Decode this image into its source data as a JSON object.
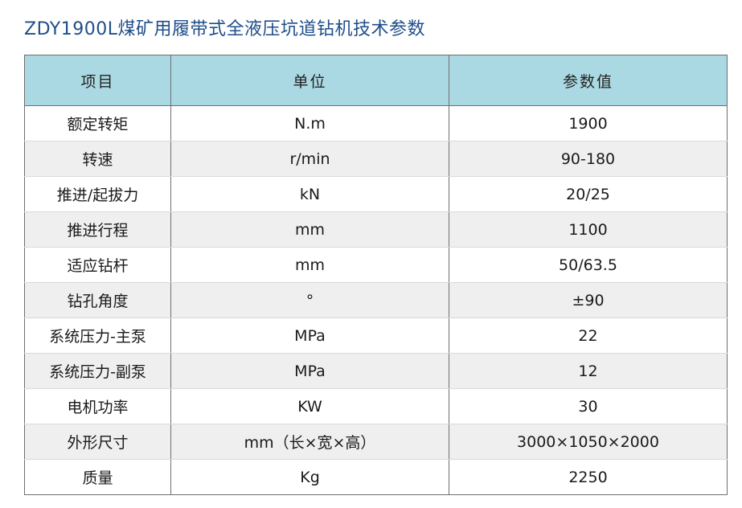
{
  "title": "ZDY1900L煤矿用履带式全液压坑道钻机技术参数",
  "table": {
    "headers": [
      "项目",
      "单位",
      "参数值"
    ],
    "rows": [
      {
        "item": "额定转矩",
        "unit": "N.m",
        "value": "1900"
      },
      {
        "item": "转速",
        "unit": "r/min",
        "value": "90-180"
      },
      {
        "item": "推进/起拔力",
        "unit": "kN",
        "value": "20/25"
      },
      {
        "item": "推进行程",
        "unit": "mm",
        "value": "1100"
      },
      {
        "item": "适应钻杆",
        "unit": "mm",
        "value": "50/63.5"
      },
      {
        "item": "钻孔角度",
        "unit": "°",
        "value": "±90"
      },
      {
        "item": "系统压力-主泵",
        "unit": "MPa",
        "value": "22"
      },
      {
        "item": "系统压力-副泵",
        "unit": "MPa",
        "value": "12"
      },
      {
        "item": "电机功率",
        "unit": "KW",
        "value": "30"
      },
      {
        "item": "外形尺寸",
        "unit": "mm（长×宽×高）",
        "value": "3000×1050×2000"
      },
      {
        "item": "质量",
        "unit": "Kg",
        "value": "2250"
      }
    ]
  },
  "colors": {
    "title": "#1f4e8a",
    "header_bg": "#abd9e3",
    "stripe_bg": "#efefef",
    "border": "#6f6f6f"
  }
}
